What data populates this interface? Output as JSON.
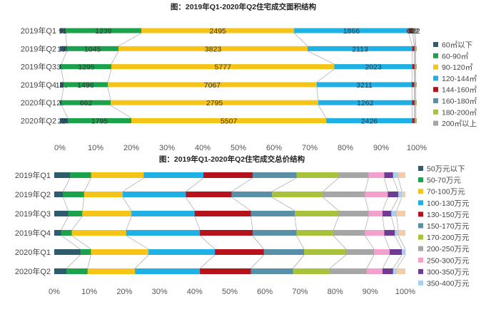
{
  "chart_data": [
    {
      "type": "bar",
      "stacking": "percent",
      "orientation": "horizontal",
      "title": "图：2019年Q1-2020年Q2住宅成交面积结构",
      "categories": [
        "2019年Q1",
        "2019年Q2",
        "2019年Q3",
        "2019年Q4",
        "2020年Q1",
        "2020年Q2"
      ],
      "xlim": [
        0,
        100
      ],
      "xticks": [
        "0%",
        "10%",
        "20%",
        "30%",
        "40%",
        "50%",
        "60%",
        "70%",
        "80%",
        "90%",
        "100%"
      ],
      "legend_position": "right",
      "series": [
        {
          "name": "60㎡以下",
          "color": "#2e5b6e",
          "values": [
            91,
            137,
            37,
            120,
            20,
            220
          ],
          "labels": [
            "91",
            "137",
            "37",
            "120",
            "20",
            "220"
          ]
        },
        {
          "name": "60-90㎡",
          "color": "#1aa34a",
          "values": [
            1238,
            1045,
            1295,
            1496,
            662,
            1795
          ],
          "labels": [
            "1238",
            "1045",
            "1295",
            "1496",
            "662",
            "1795"
          ]
        },
        {
          "name": "90-120㎡",
          "color": "#f5c417",
          "values": [
            2495,
            3823,
            5777,
            7067,
            2795,
            5507
          ],
          "labels": [
            "2495",
            "3823",
            "5777",
            "7067",
            "2795",
            "5507"
          ]
        },
        {
          "name": "120-144㎡",
          "color": "#1fb0e6",
          "values": [
            1866,
            2113,
            2023,
            3211,
            1262,
            2426
          ],
          "labels": [
            "1866",
            "2113",
            "2023",
            "3211",
            "1262",
            "2426"
          ]
        },
        {
          "name": "144-160㎡",
          "color": "#b5121b",
          "values": [
            65,
            40,
            50,
            80,
            30,
            60
          ],
          "labels": [
            "65",
            "",
            "",
            "",
            "",
            ""
          ]
        },
        {
          "name": "160-180㎡",
          "color": "#5a8fa8",
          "values": [
            25,
            15,
            20,
            30,
            12,
            24
          ],
          "labels": [
            "25",
            "",
            "",
            "",
            "",
            ""
          ]
        },
        {
          "name": "180-200㎡",
          "color": "#a8c23c",
          "values": [
            22,
            15,
            20,
            28,
            10,
            21
          ],
          "labels": [
            "22",
            "",
            "",
            "",
            "",
            ""
          ]
        },
        {
          "name": "200㎡以上",
          "color": "#a6a6a6",
          "values": [
            22,
            20,
            24,
            30,
            11,
            23
          ],
          "labels": [
            "22",
            "",
            "",
            "",
            "",
            ""
          ]
        }
      ]
    },
    {
      "type": "bar",
      "stacking": "percent",
      "orientation": "horizontal",
      "title": "图：2019年Q1-2020年Q2住宅成交总价结构",
      "categories": [
        "2019年Q1",
        "2019年Q2",
        "2019年Q3",
        "2019年Q4",
        "2020年Q1",
        "2020年Q2"
      ],
      "xlim": [
        0,
        100
      ],
      "xticks": [
        "0%",
        "10%",
        "20%",
        "30%",
        "40%",
        "50%",
        "60%",
        "70%",
        "80%",
        "90%",
        "100%"
      ],
      "legend_position": "right",
      "series": [
        {
          "name": "50万元以下",
          "color": "#2e5b6e",
          "values": [
            4.5,
            2.5,
            4.0,
            2.0,
            7.5,
            3.5
          ]
        },
        {
          "name": "50-70万元",
          "color": "#1aa34a",
          "values": [
            6.0,
            6.0,
            4.0,
            3.0,
            3.0,
            6.0
          ]
        },
        {
          "name": "70-100万元",
          "color": "#f5c417",
          "values": [
            15.0,
            11.0,
            14.0,
            15.5,
            16.5,
            13.5
          ]
        },
        {
          "name": "100-130万元",
          "color": "#1fb0e6",
          "values": [
            17.0,
            18.0,
            18.0,
            21.0,
            19.0,
            18.5
          ]
        },
        {
          "name": "130-150万元",
          "color": "#b5121b",
          "values": [
            14.0,
            13.0,
            16.0,
            15.0,
            14.0,
            14.5
          ]
        },
        {
          "name": "150-170万元",
          "color": "#5a8fa8",
          "values": [
            12.5,
            11.5,
            12.5,
            12.5,
            11.5,
            12.0
          ]
        },
        {
          "name": "170-200万元",
          "color": "#a8c23c",
          "values": [
            12.0,
            14.5,
            12.5,
            10.5,
            12.0,
            10.5
          ]
        },
        {
          "name": "200-250万元",
          "color": "#a6a6a6",
          "values": [
            8.5,
            12.0,
            8.5,
            9.0,
            8.0,
            10.5
          ]
        },
        {
          "name": "250-300万元",
          "color": "#f3a0cc",
          "values": [
            4.5,
            6.5,
            4.0,
            5.5,
            4.5,
            4.5
          ]
        },
        {
          "name": "300-350万元",
          "color": "#6f3b93",
          "values": [
            2.5,
            3.0,
            2.5,
            3.0,
            3.5,
            3.0
          ]
        },
        {
          "name": "350-400万元",
          "color": "#a9d0f0",
          "values": [
            1.5,
            1.0,
            1.5,
            1.0,
            1.0,
            1.0
          ]
        },
        {
          "name": "",
          "color": "#f3cda9",
          "values": [
            2.0,
            1.0,
            2.5,
            2.0,
            0.0,
            2.5
          ]
        }
      ]
    }
  ]
}
